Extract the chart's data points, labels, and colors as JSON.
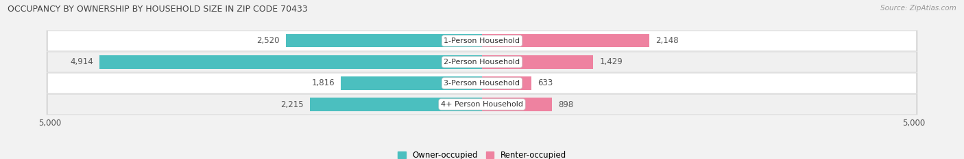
{
  "title": "OCCUPANCY BY OWNERSHIP BY HOUSEHOLD SIZE IN ZIP CODE 70433",
  "source": "Source: ZipAtlas.com",
  "categories": [
    "1-Person Household",
    "2-Person Household",
    "3-Person Household",
    "4+ Person Household"
  ],
  "owner_values": [
    2520,
    4914,
    1816,
    2215
  ],
  "renter_values": [
    2148,
    1429,
    633,
    898
  ],
  "max_scale": 5000,
  "owner_color": "#4BBFBF",
  "renter_color": "#EE82A0",
  "bg_color": "#F2F2F2",
  "row_bg_even": "#FFFFFF",
  "row_bg_odd": "#F0F0F0",
  "label_color": "#555555",
  "title_color": "#444444",
  "source_color": "#999999",
  "legend_owner": "Owner-occupied",
  "legend_renter": "Renter-occupied",
  "axis_label": "5,000",
  "bar_height": 0.62
}
